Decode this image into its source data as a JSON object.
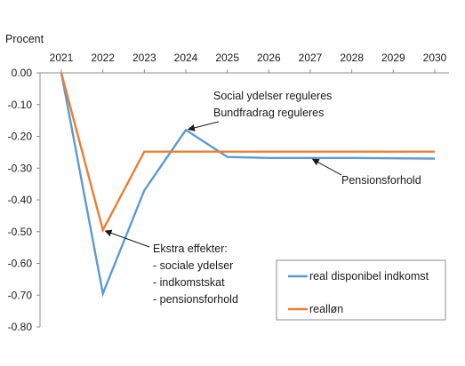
{
  "chart_data": {
    "type": "line",
    "ylabel": "Procent",
    "x": [
      "2021",
      "2022",
      "2023",
      "2024",
      "2025",
      "2026",
      "2027",
      "2028",
      "2029",
      "2030"
    ],
    "ylim": [
      -0.8,
      0.0
    ],
    "yticks": [
      0.0,
      -0.1,
      -0.2,
      -0.3,
      -0.4,
      -0.5,
      -0.6,
      -0.7,
      -0.8
    ],
    "ytick_labels": [
      "0.00",
      "-0.10",
      "-0.20",
      "-0.30",
      "-0.40",
      "-0.50",
      "-0.60",
      "-0.70",
      "-0.80"
    ],
    "x_axis_position": "top",
    "grid": false,
    "legend_position": "bottom-right",
    "series": [
      {
        "name": "real disponibel indkomst",
        "color": "#5b9bd5",
        "values": [
          0.0,
          -0.695,
          -0.37,
          -0.18,
          -0.265,
          -0.268,
          -0.268,
          -0.268,
          -0.269,
          -0.27
        ]
      },
      {
        "name": "realløn",
        "color": "#ed7d31",
        "values": [
          0.0,
          -0.495,
          -0.248,
          -0.248,
          -0.248,
          -0.248,
          -0.248,
          -0.248,
          -0.248,
          -0.248
        ]
      }
    ],
    "annotations": [
      {
        "lines": [
          "Social ydelser reguleres",
          "Bundfradrag reguleres"
        ],
        "points_to": {
          "x": "2024",
          "y": -0.18
        }
      },
      {
        "lines": [
          "Pensionsforhold"
        ],
        "points_to": {
          "x": "2027",
          "y": -0.268
        }
      },
      {
        "lines": [
          "Ekstra effekter:",
          "- sociale ydelser",
          "- indkomstskat",
          "- pensionsforhold"
        ],
        "points_to": {
          "x": "2022",
          "y": -0.495
        }
      }
    ]
  }
}
